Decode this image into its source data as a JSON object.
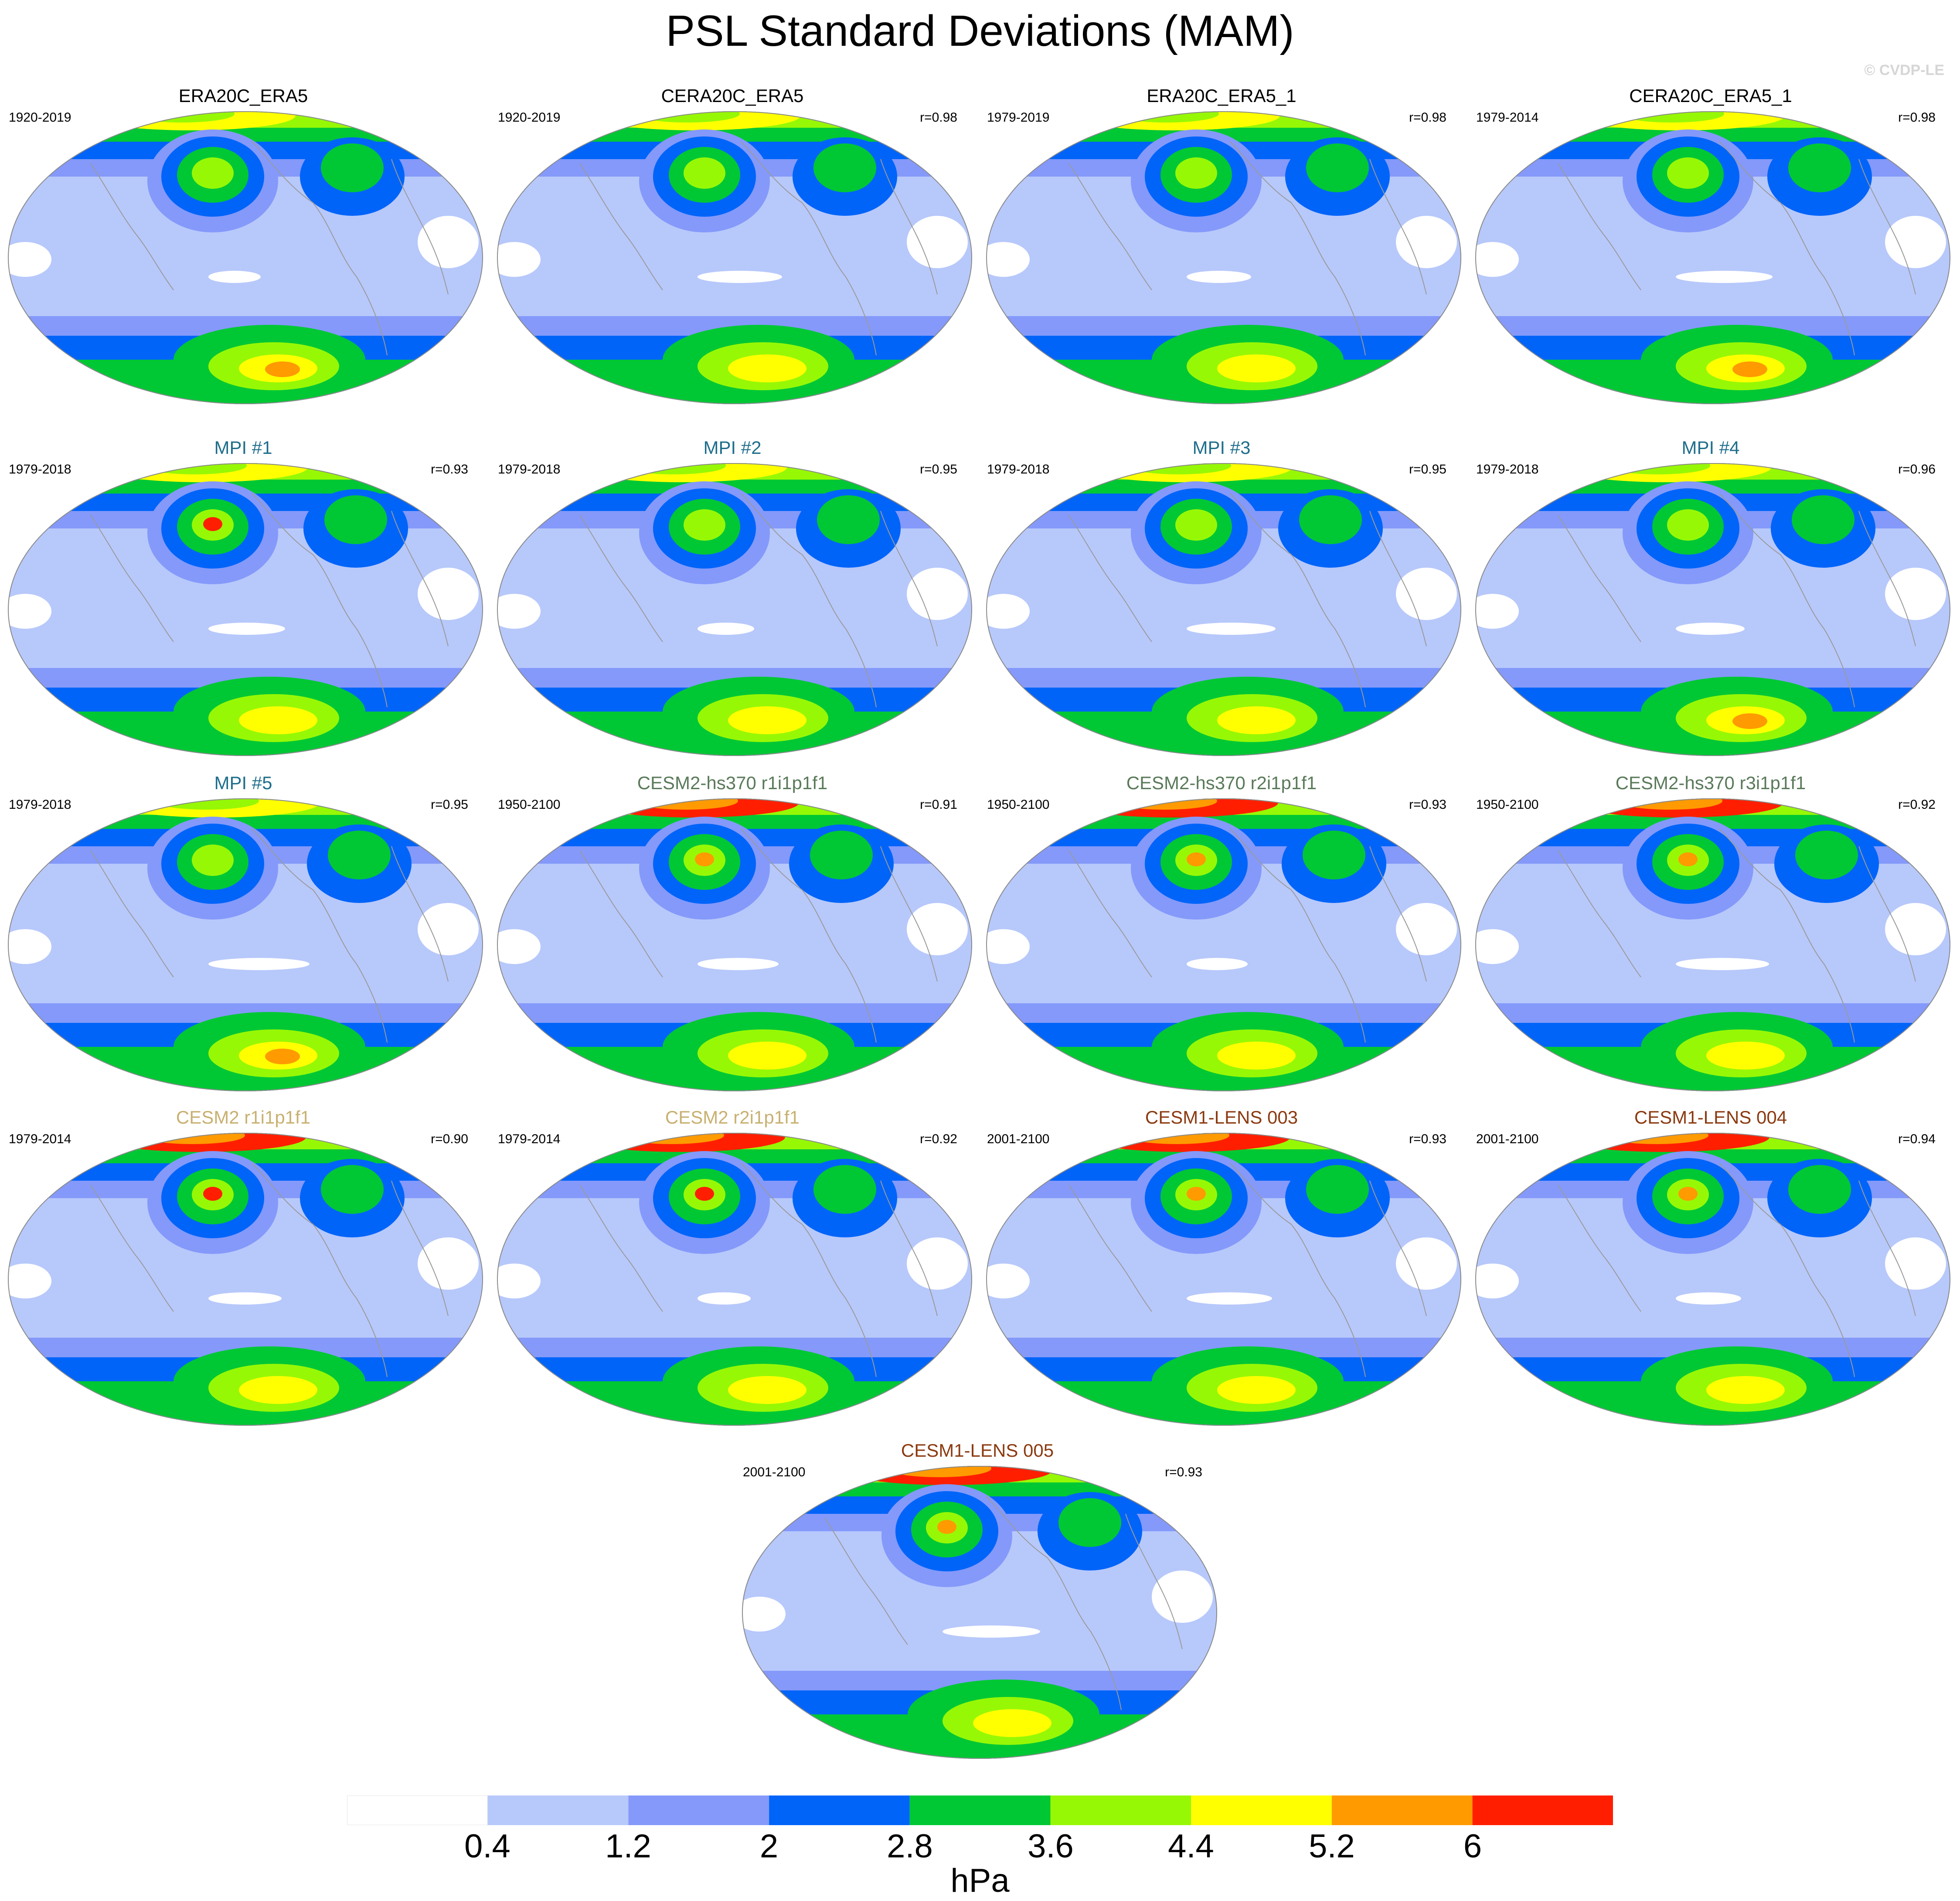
{
  "title": "PSL Standard Deviations (MAM)",
  "credit": "© CVDP-LE",
  "colors": {
    "c0": "#ffffff",
    "c1": "#b7c8fb",
    "c2": "#8499fa",
    "c3": "#0064f9",
    "c4": "#00c834",
    "c5": "#97f805",
    "c6": "#ffff00",
    "c7": "#ff9a00",
    "c8": "#ff1f00",
    "land_outline": "#9a9a9a"
  },
  "panels": [
    {
      "name": "ERA20C_ERA5",
      "years": "1920-2019",
      "corr": "",
      "name_color": "#000000"
    },
    {
      "name": "CERA20C_ERA5",
      "years": "1920-2019",
      "corr": "r=0.98",
      "name_color": "#000000"
    },
    {
      "name": "ERA20C_ERA5_1",
      "years": "1979-2019",
      "corr": "r=0.98",
      "name_color": "#000000"
    },
    {
      "name": "CERA20C_ERA5_1",
      "years": "1979-2014",
      "corr": "r=0.98",
      "name_color": "#000000"
    },
    {
      "name": "MPI #1",
      "years": "1979-2018",
      "corr": "r=0.93",
      "name_color": "#1f6e8c"
    },
    {
      "name": "MPI #2",
      "years": "1979-2018",
      "corr": "r=0.95",
      "name_color": "#1f6e8c"
    },
    {
      "name": "MPI #3",
      "years": "1979-2018",
      "corr": "r=0.95",
      "name_color": "#1f6e8c"
    },
    {
      "name": "MPI #4",
      "years": "1979-2018",
      "corr": "r=0.96",
      "name_color": "#1f6e8c"
    },
    {
      "name": "MPI #5",
      "years": "1979-2018",
      "corr": "r=0.95",
      "name_color": "#1f6e8c"
    },
    {
      "name": "CESM2-hs370 r1i1p1f1",
      "years": "1950-2100",
      "corr": "r=0.91",
      "name_color": "#5a7a5a"
    },
    {
      "name": "CESM2-hs370 r2i1p1f1",
      "years": "1950-2100",
      "corr": "r=0.93",
      "name_color": "#5a7a5a"
    },
    {
      "name": "CESM2-hs370 r3i1p1f1",
      "years": "1950-2100",
      "corr": "r=0.92",
      "name_color": "#5a7a5a"
    },
    {
      "name": "CESM2 r1i1p1f1",
      "years": "1979-2014",
      "corr": "r=0.90",
      "name_color": "#c8b070"
    },
    {
      "name": "CESM2 r2i1p1f1",
      "years": "1979-2014",
      "corr": "r=0.92",
      "name_color": "#c8b070"
    },
    {
      "name": "CESM1-LENS 003",
      "years": "2001-2100",
      "corr": "r=0.93",
      "name_color": "#8b3a10"
    },
    {
      "name": "CESM1-LENS 004",
      "years": "2001-2100",
      "corr": "r=0.94",
      "name_color": "#8b3a10"
    },
    {
      "name": "CESM1-LENS 005",
      "years": "2001-2100",
      "corr": "r=0.93",
      "name_color": "#8b3a10"
    }
  ],
  "colorbar": {
    "labels": [
      "0.4",
      "1.2",
      "2",
      "2.8",
      "3.6",
      "4.4",
      "5.2",
      "6"
    ],
    "unit": "hPa"
  }
}
